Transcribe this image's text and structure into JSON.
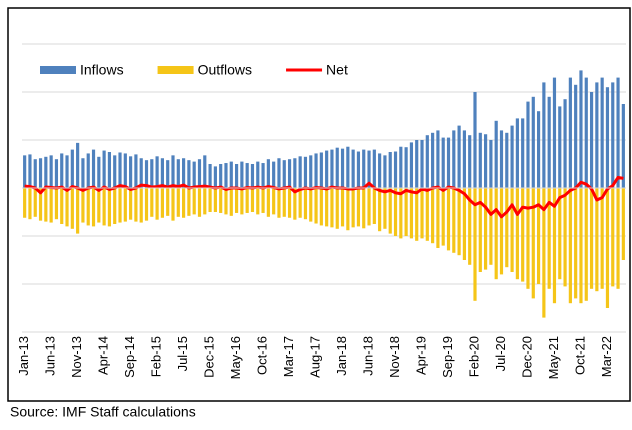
{
  "chart_data": {
    "type": "bar",
    "source": "Source: IMF Staff calculations",
    "categories": [
      "Jan-13",
      null,
      null,
      null,
      null,
      "Jun-13",
      null,
      null,
      null,
      null,
      "Nov-13",
      null,
      null,
      null,
      null,
      "Apr-14",
      null,
      null,
      null,
      null,
      "Sep-14",
      null,
      null,
      null,
      null,
      "Feb-15",
      null,
      null,
      null,
      null,
      "Jul-15",
      null,
      null,
      null,
      null,
      "Dec-15",
      null,
      null,
      null,
      null,
      "May-16",
      null,
      null,
      null,
      null,
      "Oct-16",
      null,
      null,
      null,
      null,
      "Mar-17",
      null,
      null,
      null,
      null,
      "Aug-17",
      null,
      null,
      null,
      null,
      "Jan-18",
      null,
      null,
      null,
      null,
      "Jun-18",
      null,
      null,
      null,
      null,
      "Nov-18",
      null,
      null,
      null,
      null,
      "Apr-19",
      null,
      null,
      null,
      null,
      "Sep-19",
      null,
      null,
      null,
      null,
      "Feb-20",
      null,
      null,
      null,
      null,
      "Jul-20",
      null,
      null,
      null,
      null,
      "Dec-20",
      null,
      null,
      null,
      null,
      "May-21",
      null,
      null,
      null,
      null,
      "Oct-21",
      null,
      null,
      null,
      null,
      "Mar-22",
      null,
      null,
      null
    ],
    "series": [
      {
        "name": "Inflows",
        "color": "#4f81bd",
        "kind": "bar",
        "values": [
          0.68,
          0.7,
          0.6,
          0.62,
          0.65,
          0.68,
          0.6,
          0.72,
          0.68,
          0.8,
          0.94,
          0.62,
          0.72,
          0.8,
          0.65,
          0.78,
          0.75,
          0.68,
          0.74,
          0.72,
          0.66,
          0.7,
          0.62,
          0.58,
          0.6,
          0.66,
          0.62,
          0.58,
          0.68,
          0.6,
          0.62,
          0.58,
          0.55,
          0.6,
          0.68,
          0.5,
          0.45,
          0.5,
          0.52,
          0.55,
          0.5,
          0.55,
          0.52,
          0.5,
          0.55,
          0.52,
          0.6,
          0.55,
          0.62,
          0.58,
          0.6,
          0.62,
          0.66,
          0.65,
          0.68,
          0.72,
          0.74,
          0.78,
          0.8,
          0.84,
          0.82,
          0.86,
          0.8,
          0.76,
          0.8,
          0.78,
          0.8,
          0.72,
          0.68,
          0.75,
          0.76,
          0.86,
          0.85,
          0.95,
          1.0,
          1.0,
          1.1,
          1.15,
          1.2,
          1.05,
          1.05,
          1.2,
          1.3,
          1.2,
          1.1,
          2.0,
          1.15,
          1.12,
          1.0,
          1.4,
          1.2,
          1.15,
          1.3,
          1.45,
          1.45,
          1.8,
          1.9,
          1.6,
          2.2,
          1.9,
          2.3,
          1.7,
          1.85,
          2.3,
          2.15,
          2.45,
          2.3,
          2.0,
          2.2,
          2.3,
          2.1,
          2.2,
          2.3,
          1.75
        ]
      },
      {
        "name": "Outflows",
        "color": "#f5c518",
        "kind": "bar",
        "values": [
          -0.62,
          -0.65,
          -0.6,
          -0.68,
          -0.7,
          -0.72,
          -0.65,
          -0.75,
          -0.8,
          -0.85,
          -0.95,
          -0.72,
          -0.78,
          -0.8,
          -0.72,
          -0.78,
          -0.8,
          -0.75,
          -0.72,
          -0.7,
          -0.66,
          -0.7,
          -0.72,
          -0.68,
          -0.6,
          -0.66,
          -0.62,
          -0.58,
          -0.68,
          -0.6,
          -0.62,
          -0.58,
          -0.55,
          -0.6,
          -0.55,
          -0.5,
          -0.5,
          -0.52,
          -0.55,
          -0.58,
          -0.52,
          -0.55,
          -0.52,
          -0.5,
          -0.55,
          -0.52,
          -0.6,
          -0.55,
          -0.62,
          -0.6,
          -0.62,
          -0.66,
          -0.62,
          -0.65,
          -0.7,
          -0.74,
          -0.78,
          -0.8,
          -0.82,
          -0.85,
          -0.8,
          -0.88,
          -0.82,
          -0.8,
          -0.84,
          -0.78,
          -0.75,
          -0.9,
          -0.85,
          -0.95,
          -1.0,
          -1.05,
          -1.0,
          -1.05,
          -1.1,
          -1.05,
          -1.1,
          -1.15,
          -1.25,
          -1.2,
          -1.3,
          -1.35,
          -1.4,
          -1.5,
          -1.6,
          -2.35,
          -1.75,
          -1.7,
          -1.6,
          -1.9,
          -1.8,
          -1.65,
          -1.75,
          -1.9,
          -1.95,
          -2.1,
          -2.3,
          -2.0,
          -2.7,
          -2.1,
          -2.4,
          -1.9,
          -2.05,
          -2.4,
          -2.3,
          -2.4,
          -2.35,
          -2.1,
          -2.15,
          -2.1,
          -2.5,
          -2.05,
          -2.1,
          -1.5
        ]
      },
      {
        "name": "Net",
        "color": "#ff0000",
        "kind": "line",
        "values": [
          0.04,
          0.03,
          0.0,
          -0.1,
          0.02,
          0.01,
          0.0,
          0.02,
          -0.05,
          0.03,
          0.0,
          -0.05,
          0.0,
          0.02,
          -0.05,
          0.02,
          -0.03,
          0.0,
          0.05,
          0.03,
          -0.03,
          0.0,
          0.06,
          0.05,
          0.02,
          0.03,
          0.05,
          0.02,
          0.05,
          0.03,
          0.06,
          0.0,
          0.02,
          0.03,
          0.04,
          0.02,
          0.0,
          0.02,
          -0.03,
          0.0,
          0.0,
          -0.02,
          0.01,
          0.0,
          0.02,
          0.0,
          0.03,
          0.01,
          -0.02,
          0.0,
          0.02,
          -0.08,
          -0.03,
          0.0,
          -0.02,
          0.01,
          0.0,
          -0.02,
          0.02,
          0.0,
          0.0,
          -0.02,
          -0.02,
          0.0,
          0.0,
          0.1,
          0.0,
          -0.05,
          -0.08,
          -0.05,
          -0.1,
          -0.12,
          -0.05,
          -0.08,
          -0.1,
          -0.02,
          -0.05,
          0.0,
          0.02,
          -0.05,
          0.02,
          0.0,
          -0.05,
          -0.12,
          -0.25,
          -0.35,
          -0.3,
          -0.4,
          -0.55,
          -0.45,
          -0.6,
          -0.5,
          -0.35,
          -0.55,
          -0.4,
          -0.42,
          -0.4,
          -0.35,
          -0.45,
          -0.3,
          -0.38,
          -0.2,
          -0.15,
          -0.05,
          0.0,
          0.12,
          0.08,
          -0.02,
          -0.25,
          -0.2,
          -0.02,
          0.05,
          0.22,
          0.2
        ]
      }
    ],
    "ylim": [
      -3,
      3.5
    ],
    "yticks": [
      -3,
      -2,
      -1,
      0,
      1,
      2,
      3
    ],
    "grid": true,
    "legend": "upper left"
  }
}
